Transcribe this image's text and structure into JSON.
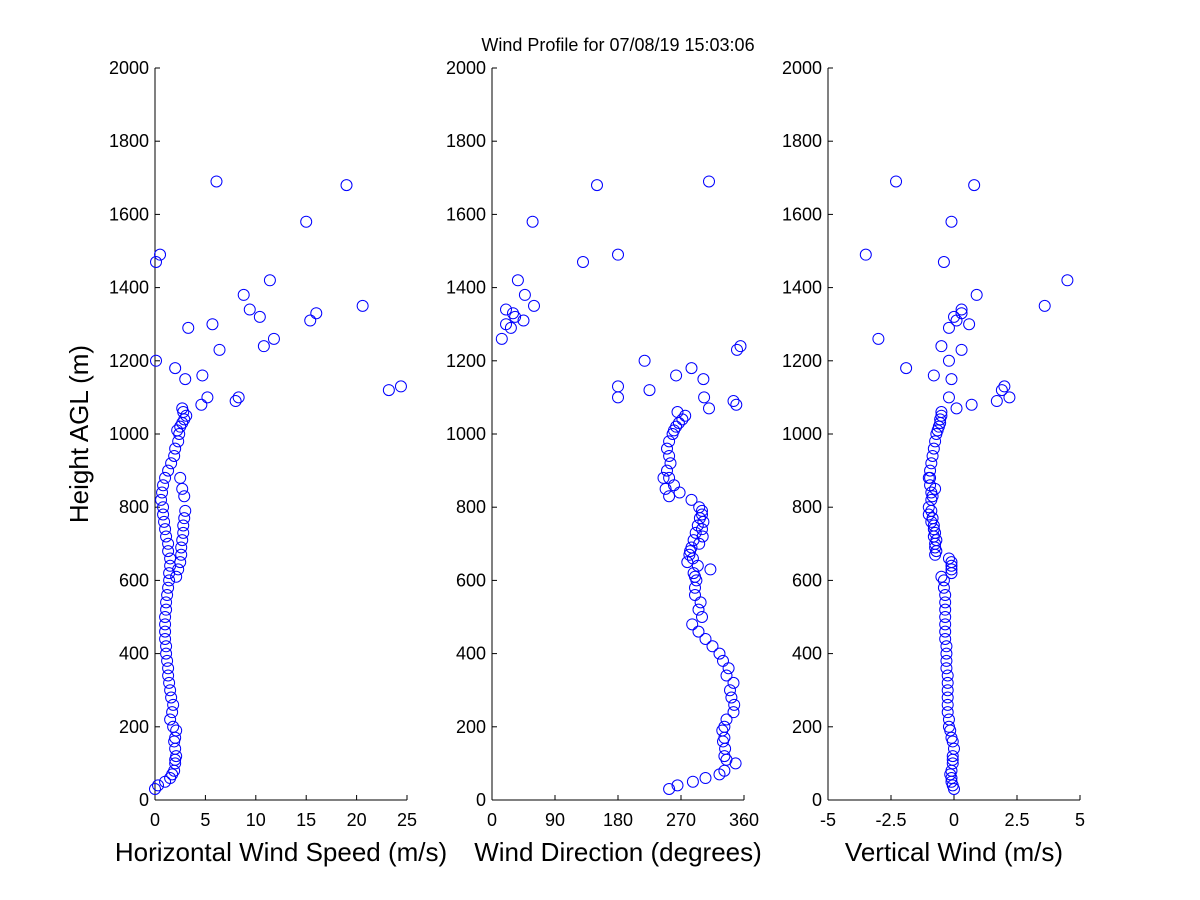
{
  "figure_title": "Wind Profile for  07/08/19 15:03:06",
  "marker_color": "#0000ff",
  "chart_data": [
    {
      "type": "scatter",
      "id": "speed",
      "title": "",
      "xlabel": "Horizontal Wind Speed (m/s)",
      "ylabel": "Height AGL (m)",
      "xlim": [
        0,
        25
      ],
      "ylim": [
        0,
        2000
      ],
      "xticks": [
        0,
        5,
        10,
        15,
        20,
        25
      ],
      "xtick_labels": [
        "0",
        "5",
        "10",
        "15",
        "20",
        "25"
      ],
      "yticks": [
        0,
        200,
        400,
        600,
        800,
        1000,
        1200,
        1400,
        1600,
        1800,
        2000
      ],
      "ytick_labels": [
        "0",
        "200",
        "400",
        "600",
        "800",
        "1000",
        "1200",
        "1400",
        "1600",
        "1800",
        "2000"
      ],
      "x": [
        0.0,
        0.3,
        1.0,
        1.5,
        1.7,
        1.9,
        2.0,
        2.0,
        2.1,
        2.0,
        1.9,
        2.0,
        2.1,
        1.8,
        1.5,
        1.7,
        1.8,
        1.6,
        1.5,
        1.4,
        1.3,
        1.3,
        1.2,
        1.1,
        1.1,
        1.0,
        1.0,
        1.0,
        1.0,
        1.1,
        1.1,
        1.2,
        1.3,
        1.4,
        1.4,
        1.5,
        1.5,
        1.3,
        1.3,
        1.1,
        1.0,
        0.9,
        0.8,
        0.8,
        0.6,
        0.7,
        0.8,
        1.0,
        1.3,
        1.6,
        1.9,
        2.0,
        2.3,
        2.4,
        2.2,
        2.5,
        2.7,
        2.9,
        3.1,
        2.8,
        2.5,
        2.7,
        2.9,
        3.0,
        2.9,
        2.8,
        2.8,
        2.7,
        2.6,
        2.6,
        2.5,
        2.3,
        2.1,
        2.7,
        5.2,
        4.6,
        8.0,
        8.3,
        24.4,
        23.2,
        3.0,
        2.0,
        4.7,
        0.1,
        6.4,
        10.8,
        11.8,
        3.3,
        5.7,
        10.4,
        15.4,
        16.0,
        9.4,
        20.6,
        8.8,
        11.4,
        0.5,
        0.1,
        15.0,
        19.0,
        6.1
      ],
      "y": [
        30,
        40,
        50,
        60,
        70,
        80,
        100,
        110,
        120,
        140,
        160,
        170,
        190,
        200,
        220,
        240,
        260,
        280,
        300,
        320,
        340,
        360,
        380,
        400,
        420,
        440,
        460,
        480,
        500,
        520,
        540,
        560,
        580,
        600,
        620,
        640,
        660,
        680,
        700,
        720,
        740,
        760,
        780,
        800,
        820,
        840,
        860,
        880,
        900,
        920,
        940,
        960,
        980,
        1000,
        1010,
        1020,
        1030,
        1040,
        1050,
        1060,
        880,
        850,
        830,
        790,
        770,
        750,
        730,
        710,
        690,
        670,
        650,
        630,
        610,
        1070,
        1100,
        1080,
        1090,
        1100,
        1130,
        1120,
        1150,
        1180,
        1160,
        1200,
        1230,
        1240,
        1260,
        1290,
        1300,
        1320,
        1310,
        1330,
        1340,
        1350,
        1380,
        1420,
        1490,
        1470,
        1580,
        1680,
        1690
      ]
    },
    {
      "type": "scatter",
      "id": "direction",
      "title": "",
      "xlabel": "Wind Direction (degrees)",
      "ylabel": "",
      "xlim": [
        0,
        360
      ],
      "ylim": [
        0,
        2000
      ],
      "xticks": [
        0,
        90,
        180,
        270,
        360
      ],
      "xtick_labels": [
        "0",
        "90",
        "180",
        "270",
        "360"
      ],
      "yticks": [
        0,
        200,
        400,
        600,
        800,
        1000,
        1200,
        1400,
        1600,
        1800,
        2000
      ],
      "ytick_labels": [
        "0",
        "200",
        "400",
        "600",
        "800",
        "1000",
        "1200",
        "1400",
        "1600",
        "1800",
        "2000"
      ],
      "x": [
        253,
        265,
        287,
        305,
        325,
        332,
        348,
        335,
        332,
        333,
        330,
        332,
        329,
        332,
        335,
        345,
        346,
        342,
        340,
        345,
        335,
        338,
        330,
        325,
        315,
        305,
        295,
        286,
        300,
        295,
        298,
        290,
        290,
        292,
        288,
        294,
        287,
        283,
        296,
        301,
        300,
        302,
        300,
        296,
        285,
        268,
        260,
        253,
        250,
        255,
        253,
        250,
        253,
        258,
        260,
        263,
        267,
        272,
        276,
        265,
        245,
        248,
        253,
        300,
        297,
        294,
        291,
        288,
        285,
        282,
        279,
        312,
        290,
        310,
        303,
        349,
        345,
        180,
        180,
        225,
        302,
        285,
        263,
        218,
        350,
        355,
        14,
        27,
        20,
        33,
        45,
        30,
        20,
        60,
        47,
        37,
        180,
        130,
        58,
        150,
        310
      ],
      "y": [
        30,
        40,
        50,
        60,
        70,
        80,
        100,
        110,
        120,
        140,
        160,
        170,
        190,
        200,
        220,
        240,
        260,
        280,
        300,
        320,
        340,
        360,
        380,
        400,
        420,
        440,
        460,
        480,
        500,
        520,
        540,
        560,
        580,
        600,
        620,
        640,
        660,
        680,
        700,
        720,
        740,
        760,
        780,
        800,
        820,
        840,
        860,
        880,
        900,
        920,
        940,
        960,
        980,
        1000,
        1010,
        1020,
        1030,
        1040,
        1050,
        1060,
        880,
        850,
        830,
        790,
        770,
        750,
        730,
        710,
        690,
        670,
        650,
        630,
        610,
        1070,
        1100,
        1080,
        1090,
        1100,
        1130,
        1120,
        1150,
        1180,
        1160,
        1200,
        1230,
        1240,
        1260,
        1290,
        1300,
        1320,
        1310,
        1330,
        1340,
        1350,
        1380,
        1420,
        1490,
        1470,
        1580,
        1680,
        1690
      ]
    },
    {
      "type": "scatter",
      "id": "vertical",
      "title": "",
      "xlabel": "Vertical Wind (m/s)",
      "ylabel": "",
      "xlim": [
        -5,
        5
      ],
      "ylim": [
        0,
        2000
      ],
      "xticks": [
        -5,
        -2.5,
        0,
        2.5,
        5
      ],
      "xtick_labels": [
        "-5",
        "-2.5",
        "0",
        "2.5",
        "5"
      ],
      "yticks": [
        0,
        200,
        400,
        600,
        800,
        1000,
        1200,
        1400,
        1600,
        1800,
        2000
      ],
      "ytick_labels": [
        "0",
        "200",
        "400",
        "600",
        "800",
        "1000",
        "1200",
        "1400",
        "1600",
        "1800",
        "2000"
      ],
      "x": [
        0.0,
        -0.05,
        -0.1,
        -0.1,
        -0.15,
        -0.1,
        -0.05,
        -0.05,
        -0.05,
        0.0,
        -0.05,
        -0.1,
        -0.15,
        -0.2,
        -0.2,
        -0.25,
        -0.25,
        -0.25,
        -0.25,
        -0.25,
        -0.25,
        -0.3,
        -0.3,
        -0.3,
        -0.3,
        -0.35,
        -0.35,
        -0.35,
        -0.35,
        -0.35,
        -0.35,
        -0.35,
        -0.4,
        -0.4,
        -0.1,
        -0.1,
        -0.2,
        -0.7,
        -0.75,
        -0.8,
        -0.8,
        -0.9,
        -1.0,
        -1.0,
        -0.9,
        -0.9,
        -0.95,
        -0.95,
        -0.95,
        -0.9,
        -0.85,
        -0.8,
        -0.75,
        -0.7,
        -0.65,
        -0.6,
        -0.55,
        -0.55,
        -0.5,
        -0.5,
        -1.0,
        -0.75,
        -0.85,
        -0.9,
        -0.85,
        -0.8,
        -0.75,
        -0.7,
        -0.75,
        -0.75,
        -0.1,
        -0.1,
        -0.5,
        0.1,
        2.2,
        0.7,
        1.7,
        -0.2,
        2.0,
        1.9,
        -0.1,
        -1.9,
        -0.8,
        -0.2,
        0.3,
        -0.5,
        -3.0,
        -0.2,
        0.6,
        0.0,
        0.1,
        0.3,
        0.3,
        3.6,
        0.9,
        4.5,
        -3.5,
        -0.4,
        -0.1,
        0.8,
        -2.3
      ],
      "y": [
        30,
        40,
        50,
        60,
        70,
        80,
        100,
        110,
        120,
        140,
        160,
        170,
        190,
        200,
        220,
        240,
        260,
        280,
        300,
        320,
        340,
        360,
        380,
        400,
        420,
        440,
        460,
        480,
        500,
        520,
        540,
        560,
        580,
        600,
        620,
        640,
        660,
        680,
        700,
        720,
        740,
        760,
        780,
        800,
        820,
        840,
        860,
        880,
        900,
        920,
        940,
        960,
        980,
        1000,
        1010,
        1020,
        1030,
        1040,
        1050,
        1060,
        880,
        850,
        830,
        790,
        770,
        750,
        730,
        710,
        690,
        670,
        650,
        630,
        610,
        1070,
        1100,
        1080,
        1090,
        1100,
        1130,
        1120,
        1150,
        1180,
        1160,
        1200,
        1230,
        1240,
        1260,
        1290,
        1300,
        1320,
        1310,
        1330,
        1340,
        1350,
        1380,
        1420,
        1490,
        1470,
        1580,
        1680,
        1690
      ]
    }
  ]
}
